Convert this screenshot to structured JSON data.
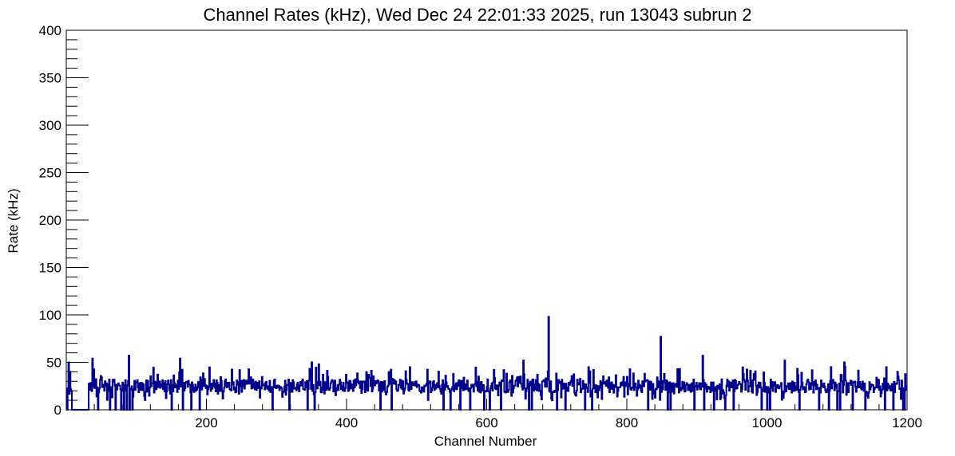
{
  "chart_data": {
    "type": "line",
    "title": "Channel Rates (kHz), Wed Dec 24 22:01:33 2025, run 13043 subrun 2",
    "xlabel": "Channel Number",
    "ylabel": "Rate (kHz)",
    "xlim": [
      0,
      1200
    ],
    "ylim": [
      0,
      400
    ],
    "x_ticks": [
      200,
      400,
      600,
      800,
      1000,
      1200
    ],
    "y_ticks": [
      0,
      50,
      100,
      150,
      200,
      250,
      300,
      350,
      400
    ],
    "series": [
      {
        "color": "#00008b",
        "baseline_kHz": 24,
        "range_kHz": [
          18,
          32
        ],
        "dead_channels": [
          1,
          8,
          9,
          10,
          11,
          12,
          13,
          14,
          15,
          16,
          17,
          18,
          19,
          20,
          21,
          22,
          23,
          24,
          25,
          26,
          27,
          28,
          29,
          30,
          31,
          45,
          62,
          70,
          78,
          82,
          86,
          90,
          94,
          150,
          166,
          178,
          190,
          294,
          318,
          344,
          354,
          448,
          464,
          538,
          548,
          562,
          576,
          596,
          604,
          620,
          660,
          664,
          700,
          712,
          740,
          750,
          830,
          858,
          862,
          896,
          910,
          924,
          940,
          952,
          992,
          1000,
          1004,
          1046,
          1074,
          1088,
          1100,
          1104,
          1122,
          1140,
          1168,
          1180,
          1194,
          1196
        ],
        "peaks": [
          [
            3,
            50
          ],
          [
            5,
            40
          ],
          [
            37,
            54
          ],
          [
            89,
            57
          ],
          [
            162,
            54
          ],
          [
            350,
            50
          ],
          [
            360,
            48
          ],
          [
            490,
            45
          ],
          [
            652,
            52
          ],
          [
            688,
            98
          ],
          [
            848,
            77
          ],
          [
            908,
            57
          ],
          [
            1025,
            52
          ],
          [
            1110,
            50
          ],
          [
            1170,
            45
          ],
          [
            1186,
            40
          ]
        ]
      }
    ]
  }
}
